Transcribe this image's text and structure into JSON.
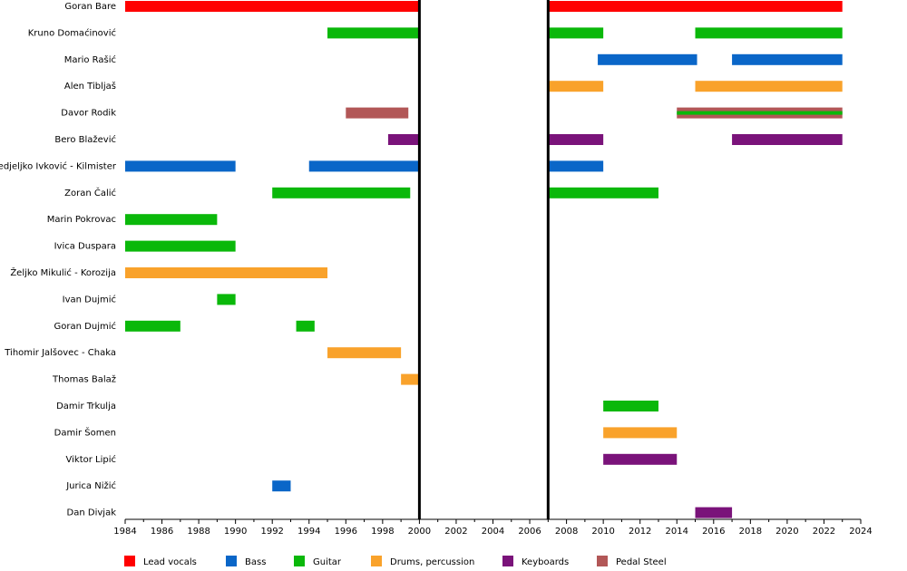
{
  "chart_data": {
    "type": "timeline",
    "xlim": [
      1984,
      2024
    ],
    "xticks": [
      1984,
      1986,
      1988,
      1990,
      1992,
      1994,
      1996,
      1998,
      2000,
      2002,
      2004,
      2006,
      2008,
      2010,
      2012,
      2014,
      2016,
      2018,
      2020,
      2022,
      2024
    ],
    "markers": [
      2000,
      2007
    ],
    "roles": [
      {
        "name": "Lead vocals",
        "color": "#ff0000"
      },
      {
        "name": "Bass",
        "color": "#0a66c8"
      },
      {
        "name": "Guitar",
        "color": "#0ab80a"
      },
      {
        "name": "Drums, percussion",
        "color": "#f9a22b"
      },
      {
        "name": "Keyboards",
        "color": "#7a137a"
      },
      {
        "name": "Pedal Steel",
        "color": "#b25757"
      }
    ],
    "members": [
      {
        "name": "Goran Bare",
        "periods": [
          {
            "role": 0,
            "start": 1984,
            "end": 2000
          },
          {
            "role": 0,
            "start": 2007,
            "end": 2023
          }
        ]
      },
      {
        "name": "Kruno Domaćinović",
        "periods": [
          {
            "role": 2,
            "start": 1995,
            "end": 2000
          },
          {
            "role": 2,
            "start": 2007,
            "end": 2010
          },
          {
            "role": 2,
            "start": 2015,
            "end": 2023
          }
        ]
      },
      {
        "name": "Mario Rašić",
        "periods": [
          {
            "role": 1,
            "start": 2009.7,
            "end": 2015.1
          },
          {
            "role": 1,
            "start": 2017,
            "end": 2023
          }
        ]
      },
      {
        "name": "Alen Tibljaš",
        "periods": [
          {
            "role": 3,
            "start": 2007,
            "end": 2010
          },
          {
            "role": 3,
            "start": 2015,
            "end": 2023
          }
        ]
      },
      {
        "name": "Davor Rodik",
        "periods": [
          {
            "role": 5,
            "start": 1996,
            "end": 1999.4
          },
          {
            "role": 5,
            "also": 2,
            "start": 2014,
            "end": 2023
          }
        ]
      },
      {
        "name": "Bero Blažević",
        "periods": [
          {
            "role": 4,
            "start": 1998.3,
            "end": 2000
          },
          {
            "role": 4,
            "start": 2007,
            "end": 2010
          },
          {
            "role": 4,
            "start": 2017,
            "end": 2023
          }
        ]
      },
      {
        "name": "Nedjeljko Ivković - Kilmister",
        "periods": [
          {
            "role": 1,
            "start": 1984,
            "end": 1990
          },
          {
            "role": 1,
            "start": 1994,
            "end": 2000
          },
          {
            "role": 1,
            "start": 2007,
            "end": 2010
          }
        ]
      },
      {
        "name": "Zoran Čalić",
        "periods": [
          {
            "role": 2,
            "start": 1992,
            "end": 1999.5
          },
          {
            "role": 2,
            "start": 2007,
            "end": 2013
          }
        ]
      },
      {
        "name": "Marin Pokrovac",
        "periods": [
          {
            "role": 2,
            "start": 1984,
            "end": 1989
          }
        ]
      },
      {
        "name": "Ivica Duspara",
        "periods": [
          {
            "role": 2,
            "start": 1984,
            "end": 1990
          }
        ]
      },
      {
        "name": "Željko Mikulić - Korozija",
        "periods": [
          {
            "role": 3,
            "start": 1984,
            "end": 1995
          }
        ]
      },
      {
        "name": "Ivan Dujmić",
        "periods": [
          {
            "role": 2,
            "start": 1989,
            "end": 1990
          }
        ]
      },
      {
        "name": "Goran Dujmić",
        "periods": [
          {
            "role": 2,
            "start": 1984,
            "end": 1987
          },
          {
            "role": 2,
            "start": 1993.3,
            "end": 1994.3
          }
        ]
      },
      {
        "name": "Tihomir Jalšovec - Chaka",
        "periods": [
          {
            "role": 3,
            "start": 1995,
            "end": 1999
          }
        ]
      },
      {
        "name": "Thomas Balaž",
        "periods": [
          {
            "role": 3,
            "start": 1999,
            "end": 2000
          }
        ]
      },
      {
        "name": "Damir Trkulja",
        "periods": [
          {
            "role": 2,
            "start": 2010,
            "end": 2013
          }
        ]
      },
      {
        "name": "Damir Šomen",
        "periods": [
          {
            "role": 3,
            "start": 2010,
            "end": 2014
          }
        ]
      },
      {
        "name": "Viktor Lipić",
        "periods": [
          {
            "role": 4,
            "start": 2010,
            "end": 2014
          }
        ]
      },
      {
        "name": "Jurica Nižić",
        "periods": [
          {
            "role": 1,
            "start": 1992,
            "end": 1993
          }
        ]
      },
      {
        "name": "Dan Divjak",
        "periods": [
          {
            "role": 4,
            "start": 2015,
            "end": 2017
          }
        ]
      }
    ]
  }
}
